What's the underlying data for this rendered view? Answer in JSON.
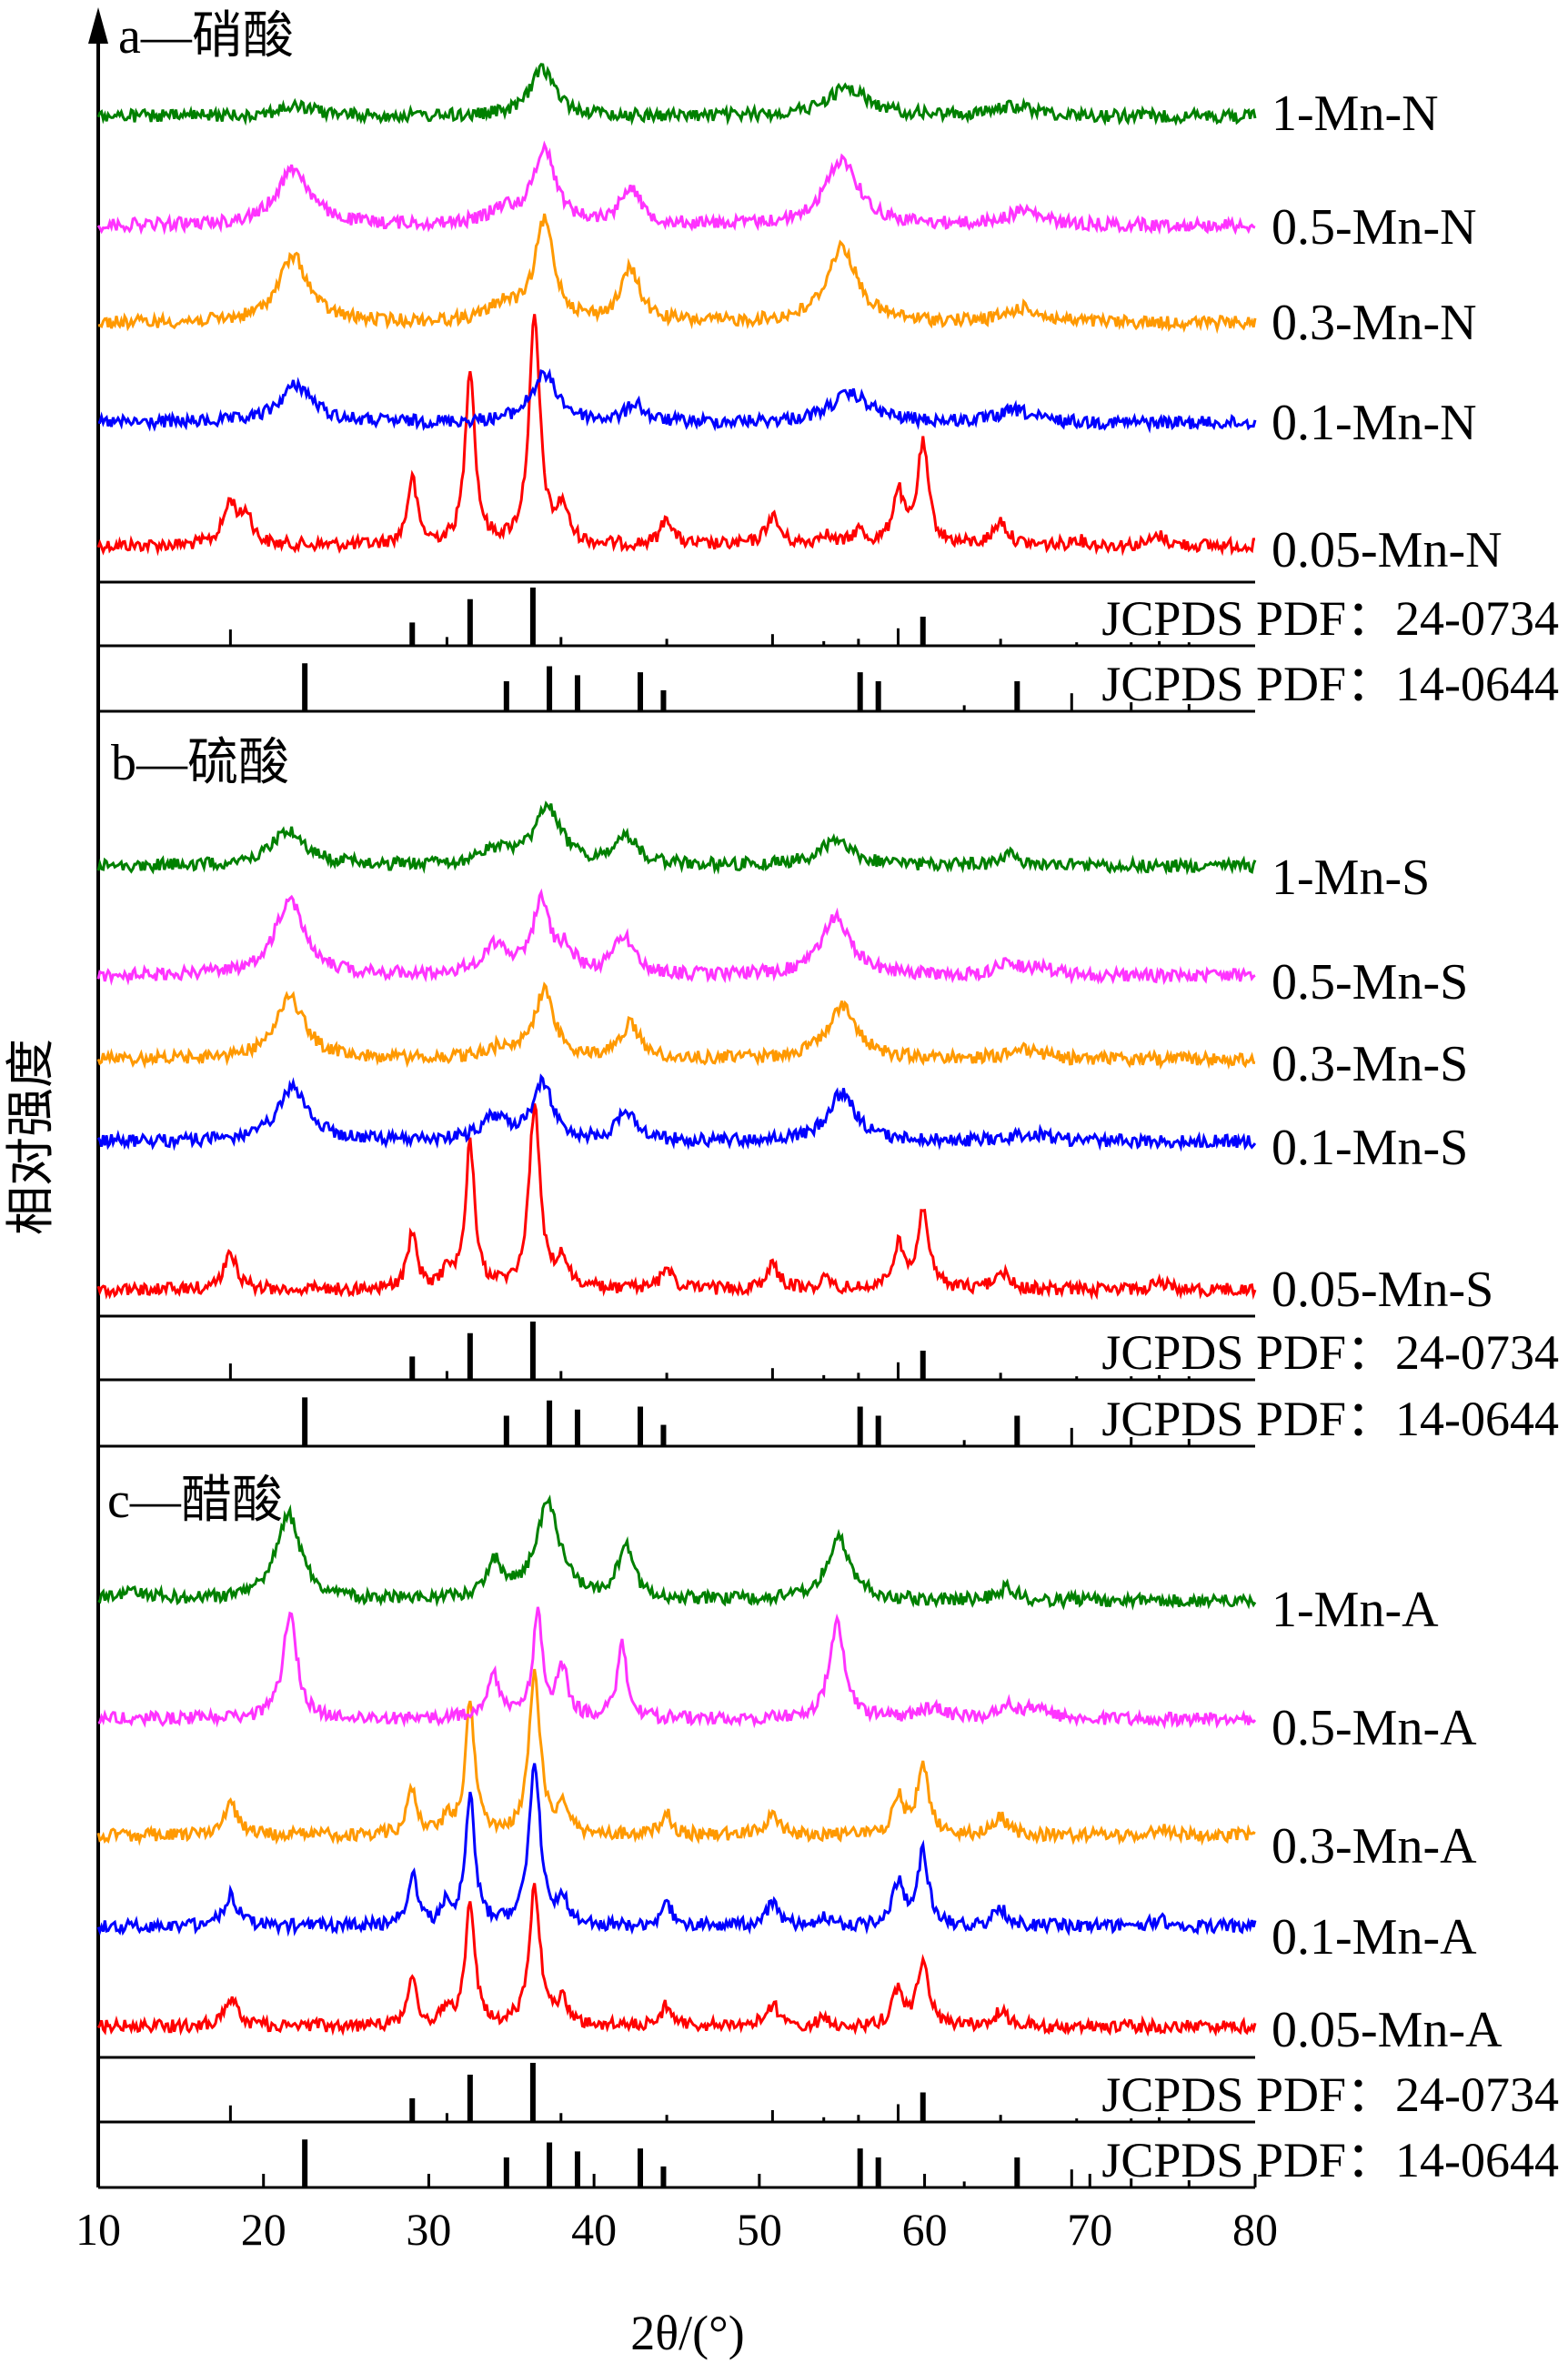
{
  "chart_data": {
    "type": "line",
    "xlabel": "2θ/(°)",
    "ylabel": "相对强度",
    "xlim": [
      10,
      80
    ],
    "xticks": [
      10,
      20,
      30,
      40,
      50,
      60,
      70,
      80
    ],
    "grid": false,
    "reference_patterns": [
      {
        "name": "JCPDS PDF：24-0734",
        "peaks": [
          [
            18.0,
            0.28
          ],
          [
            29.0,
            0.4
          ],
          [
            31.1,
            0.15
          ],
          [
            32.5,
            0.8
          ],
          [
            36.3,
            1.0
          ],
          [
            38.0,
            0.15
          ],
          [
            44.4,
            0.12
          ],
          [
            50.8,
            0.2
          ],
          [
            53.9,
            0.08
          ],
          [
            56.0,
            0.12
          ],
          [
            58.4,
            0.3
          ],
          [
            59.9,
            0.5
          ],
          [
            64.6,
            0.12
          ],
          [
            69.2,
            0.06
          ],
          [
            72.5,
            0.06
          ],
          [
            74.2,
            0.08
          ],
          [
            76.0,
            0.06
          ]
        ]
      },
      {
        "name": "JCPDS PDF：14-0644",
        "peaks": [
          [
            22.5,
            0.8
          ],
          [
            34.7,
            0.5
          ],
          [
            37.3,
            0.75
          ],
          [
            39.0,
            0.6
          ],
          [
            42.8,
            0.65
          ],
          [
            44.2,
            0.35
          ],
          [
            56.1,
            0.65
          ],
          [
            57.2,
            0.5
          ],
          [
            62.4,
            0.1
          ],
          [
            65.6,
            0.5
          ],
          [
            68.9,
            0.3
          ],
          [
            72.5,
            0.15
          ],
          [
            76.0,
            0.12
          ]
        ]
      }
    ],
    "panels": [
      {
        "title": "a—硝酸",
        "series": [
          {
            "name": "0.05-Mn-N",
            "color": "#ff0000",
            "peaks": [
              [
                18.0,
                0.18,
                0.5
              ],
              [
                19.0,
                0.12,
                0.4
              ],
              [
                29.0,
                0.28,
                0.35
              ],
              [
                32.5,
                0.75,
                0.35
              ],
              [
                36.4,
                0.95,
                0.4
              ],
              [
                38.1,
                0.15,
                0.4
              ],
              [
                44.4,
                0.12,
                0.4
              ],
              [
                50.8,
                0.12,
                0.5
              ],
              [
                53.9,
                0.05,
                0.4
              ],
              [
                56.0,
                0.06,
                0.4
              ],
              [
                58.4,
                0.22,
                0.4
              ],
              [
                59.9,
                0.42,
                0.4
              ],
              [
                64.6,
                0.1,
                0.5
              ],
              [
                69.2,
                0.03,
                0.4
              ],
              [
                74.2,
                0.04,
                0.5
              ]
            ]
          },
          {
            "name": "0.1-Mn-N",
            "color": "#0000ff",
            "peaks": [
              [
                22.0,
                0.16,
                1.2
              ],
              [
                37.0,
                0.2,
                1.0
              ],
              [
                42.5,
                0.08,
                0.6
              ],
              [
                55.5,
                0.12,
                1.5
              ],
              [
                65.5,
                0.05,
                1.2
              ]
            ]
          },
          {
            "name": "0.3-Mn-N",
            "color": "#ff9900",
            "peaks": [
              [
                21.8,
                0.28,
                1.1
              ],
              [
                34.5,
                0.07,
                1.0
              ],
              [
                37.0,
                0.42,
                0.7
              ],
              [
                42.2,
                0.22,
                0.7
              ],
              [
                55.0,
                0.32,
                1.1
              ],
              [
                66.0,
                0.06,
                1.2
              ]
            ]
          },
          {
            "name": "0.5-Mn-N",
            "color": "#ff33ff",
            "peaks": [
              [
                21.8,
                0.24,
                1.2
              ],
              [
                34.5,
                0.06,
                1.0
              ],
              [
                37.0,
                0.32,
                0.8
              ],
              [
                42.2,
                0.16,
                0.7
              ],
              [
                55.0,
                0.28,
                1.2
              ],
              [
                66.0,
                0.06,
                1.2
              ]
            ]
          },
          {
            "name": "1-Mn-N",
            "color": "#008000",
            "peaks": [
              [
                22.0,
                0.04,
                1.5
              ],
              [
                36.9,
                0.2,
                0.9
              ],
              [
                55.3,
                0.12,
                1.5
              ],
              [
                65.5,
                0.04,
                1.5
              ]
            ]
          }
        ]
      },
      {
        "title": "b—硫酸",
        "series": [
          {
            "name": "0.05-Mn-S",
            "color": "#ff0000",
            "peaks": [
              [
                18.0,
                0.18,
                0.5
              ],
              [
                29.0,
                0.28,
                0.35
              ],
              [
                31.1,
                0.1,
                0.3
              ],
              [
                32.5,
                0.75,
                0.35
              ],
              [
                36.4,
                0.95,
                0.4
              ],
              [
                38.1,
                0.15,
                0.4
              ],
              [
                44.4,
                0.12,
                0.4
              ],
              [
                50.8,
                0.12,
                0.5
              ],
              [
                53.9,
                0.05,
                0.4
              ],
              [
                58.4,
                0.22,
                0.4
              ],
              [
                59.9,
                0.42,
                0.4
              ],
              [
                64.6,
                0.1,
                0.5
              ],
              [
                74.2,
                0.04,
                0.5
              ]
            ]
          },
          {
            "name": "0.1-Mn-S",
            "color": "#0000ff",
            "peaks": [
              [
                21.8,
                0.28,
                1.1
              ],
              [
                34.0,
                0.12,
                1.0
              ],
              [
                36.9,
                0.3,
                0.7
              ],
              [
                42.0,
                0.15,
                0.7
              ],
              [
                55.0,
                0.25,
                1.0
              ],
              [
                66.5,
                0.04,
                1.2
              ]
            ]
          },
          {
            "name": "0.3-Mn-S",
            "color": "#ff9900",
            "peaks": [
              [
                21.6,
                0.32,
                1.1
              ],
              [
                34.5,
                0.06,
                1.0
              ],
              [
                37.0,
                0.35,
                0.7
              ],
              [
                42.2,
                0.18,
                0.7
              ],
              [
                55.0,
                0.28,
                1.1
              ],
              [
                66.0,
                0.05,
                1.2
              ]
            ]
          },
          {
            "name": "0.5-Mn-S",
            "color": "#ff33ff",
            "peaks": [
              [
                21.6,
                0.4,
                1.1
              ],
              [
                34.0,
                0.15,
                1.0
              ],
              [
                36.8,
                0.38,
                0.6
              ],
              [
                38.3,
                0.12,
                0.6
              ],
              [
                41.8,
                0.2,
                0.7
              ],
              [
                54.6,
                0.3,
                1.1
              ],
              [
                65.0,
                0.08,
                0.6
              ],
              [
                67.0,
                0.04,
                1.0
              ]
            ]
          },
          {
            "name": "1-Mn-S",
            "color": "#008000",
            "peaks": [
              [
                21.5,
                0.18,
                1.3
              ],
              [
                34.0,
                0.07,
                1.0
              ],
              [
                37.2,
                0.3,
                1.0
              ],
              [
                42.0,
                0.14,
                0.8
              ],
              [
                54.6,
                0.12,
                1.3
              ],
              [
                65.0,
                0.06,
                0.6
              ]
            ]
          }
        ]
      },
      {
        "title": "c—醋酸",
        "series": [
          {
            "name": "0.05-Mn-A",
            "color": "#ff0000",
            "peaks": [
              [
                18.0,
                0.16,
                0.5
              ],
              [
                29.0,
                0.25,
                0.35
              ],
              [
                31.1,
                0.1,
                0.3
              ],
              [
                32.5,
                0.7,
                0.35
              ],
              [
                36.4,
                0.8,
                0.4
              ],
              [
                38.1,
                0.14,
                0.4
              ],
              [
                44.4,
                0.12,
                0.4
              ],
              [
                50.8,
                0.12,
                0.5
              ],
              [
                53.9,
                0.04,
                0.4
              ],
              [
                58.4,
                0.2,
                0.4
              ],
              [
                59.9,
                0.38,
                0.4
              ],
              [
                64.6,
                0.08,
                0.5
              ]
            ]
          },
          {
            "name": "0.1-Mn-A",
            "color": "#0000ff",
            "peaks": [
              [
                18.0,
                0.18,
                0.5
              ],
              [
                29.0,
                0.3,
                0.35
              ],
              [
                31.1,
                0.12,
                0.3
              ],
              [
                32.5,
                0.75,
                0.35
              ],
              [
                36.4,
                0.95,
                0.4
              ],
              [
                38.1,
                0.15,
                0.4
              ],
              [
                44.4,
                0.13,
                0.4
              ],
              [
                50.8,
                0.13,
                0.5
              ],
              [
                53.9,
                0.05,
                0.4
              ],
              [
                58.4,
                0.24,
                0.4
              ],
              [
                59.9,
                0.42,
                0.4
              ],
              [
                64.6,
                0.1,
                0.5
              ],
              [
                74.2,
                0.04,
                0.5
              ]
            ]
          },
          {
            "name": "0.3-Mn-A",
            "color": "#ff9900",
            "peaks": [
              [
                18.0,
                0.18,
                0.5
              ],
              [
                29.0,
                0.28,
                0.35
              ],
              [
                31.1,
                0.1,
                0.3
              ],
              [
                32.5,
                0.75,
                0.35
              ],
              [
                36.4,
                0.95,
                0.4
              ],
              [
                38.1,
                0.15,
                0.4
              ],
              [
                44.4,
                0.12,
                0.4
              ],
              [
                50.8,
                0.12,
                0.5
              ],
              [
                58.4,
                0.22,
                0.4
              ],
              [
                59.9,
                0.42,
                0.4
              ],
              [
                64.6,
                0.1,
                0.5
              ],
              [
                74.2,
                0.04,
                0.5
              ]
            ]
          },
          {
            "name": "0.5-Mn-A",
            "color": "#ff33ff",
            "peaks": [
              [
                21.6,
                0.62,
                0.5
              ],
              [
                33.9,
                0.25,
                0.5
              ],
              [
                36.6,
                0.6,
                0.35
              ],
              [
                38.1,
                0.28,
                0.4
              ],
              [
                41.7,
                0.42,
                0.35
              ],
              [
                54.7,
                0.55,
                0.55
              ],
              [
                60.5,
                0.06,
                0.8
              ],
              [
                65.0,
                0.08,
                0.6
              ],
              [
                66.8,
                0.06,
                0.8
              ]
            ]
          },
          {
            "name": "1-Mn-A",
            "color": "#008000",
            "peaks": [
              [
                12.0,
                0.05,
                1.5
              ],
              [
                21.5,
                0.5,
                0.9
              ],
              [
                34.0,
                0.2,
                0.6
              ],
              [
                37.2,
                0.55,
                0.9
              ],
              [
                41.9,
                0.3,
                0.6
              ],
              [
                54.8,
                0.35,
                0.9
              ],
              [
                65.0,
                0.08,
                0.6
              ]
            ]
          }
        ]
      }
    ]
  }
}
